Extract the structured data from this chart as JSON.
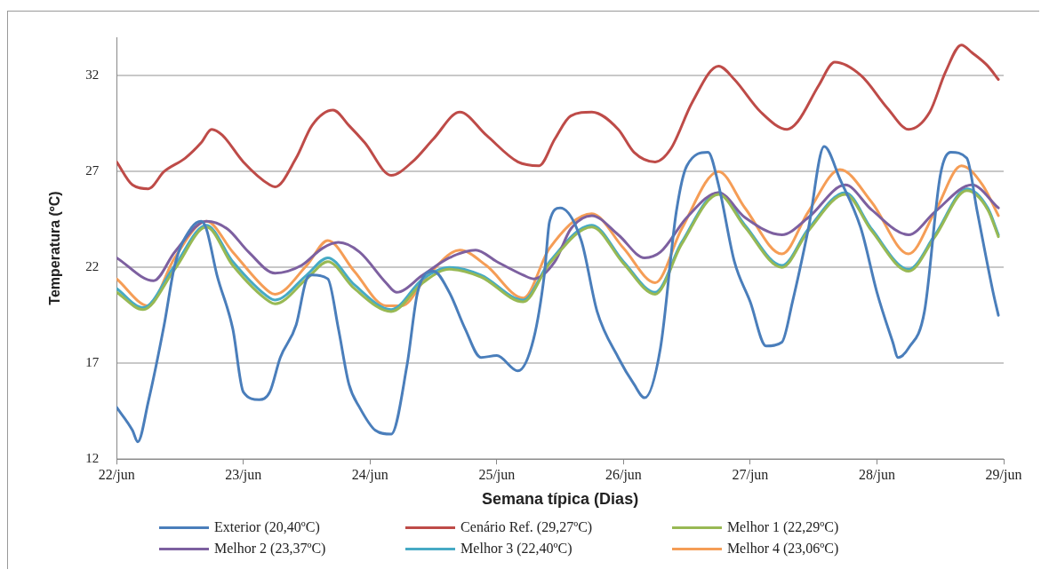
{
  "chart_data": {
    "type": "line",
    "xlabel": "Semana típica (Dias)",
    "ylabel": "Temperatura (ºC)",
    "xlim": [
      "--06-22",
      "--06-29"
    ],
    "xticks": [
      {
        "value": "--06-22",
        "label": "22/jun"
      },
      {
        "value": "--06-23",
        "label": "23/jun"
      },
      {
        "value": "--06-24",
        "label": "24/jun"
      },
      {
        "value": "--06-25",
        "label": "25/jun"
      },
      {
        "value": "--06-26",
        "label": "26/jun"
      },
      {
        "value": "--06-27",
        "label": "27/jun"
      },
      {
        "value": "--06-28",
        "label": "28/jun"
      },
      {
        "value": "--06-29",
        "label": "29/jun"
      }
    ],
    "ylim": [
      12,
      34
    ],
    "yticks": [
      12,
      17,
      22,
      27,
      32
    ],
    "grid": "y",
    "legend": "bottom",
    "marker": "none",
    "line_style": "solid",
    "series": [
      {
        "name": "Exterior (20,40ºC)",
        "color": "#4a7ebb",
        "x": [
          "--06-22T00:00",
          "--06-22T03:00",
          "--06-22T04:00",
          "--06-22T06:00",
          "--06-22T09:00",
          "--06-22T11:00",
          "--06-22T14:00",
          "--06-22T16:00",
          "--06-22T17:00",
          "--06-22T19:00",
          "--06-22T22:00",
          "--06-23T00:00",
          "--06-23T03:00",
          "--06-23T05:00",
          "--06-23T07:00",
          "--06-23T10:00",
          "--06-23T12:00",
          "--06-23T13:00",
          "--06-23T16:00",
          "--06-23T18:00",
          "--06-23T20:00",
          "--06-23T22:00",
          "--06-24T01:00",
          "--06-24T04:00",
          "--06-24T07:00",
          "--06-24T09:00",
          "--06-24T12:00",
          "--06-24T15:00",
          "--06-24T18:00",
          "--06-24T21:00",
          "--06-25T00:00",
          "--06-25T04:00",
          "--06-25T07:00",
          "--06-25T09:00",
          "--06-25T10:00",
          "--06-25T12:00",
          "--06-25T16:00",
          "--06-25T19:00",
          "--06-25T23:00",
          "--06-26T02:00",
          "--06-26T04:00",
          "--06-26T07:00",
          "--06-26T10:00",
          "--06-26T12:00",
          "--06-26T16:00",
          "--06-26T18:00",
          "--06-26T21:00",
          "--06-27T00:00",
          "--06-27T03:00",
          "--06-27T06:00",
          "--06-27T08:00",
          "--06-27T11:00",
          "--06-27T14:00",
          "--06-27T17:00",
          "--06-27T21:00",
          "--06-28T00:00",
          "--06-28T03:00",
          "--06-28T04:00",
          "--06-28T06:00",
          "--06-28T09:00",
          "--06-28T12:00",
          "--06-28T14:00",
          "--06-28T17:00",
          "--06-28T19:00",
          "--06-28T22:00",
          "--06-28T23:00"
        ],
        "values": [
          14.7,
          13.5,
          12.9,
          15.0,
          19.0,
          22.1,
          24.0,
          24.4,
          24.0,
          21.6,
          18.8,
          15.5,
          15.1,
          15.5,
          17.3,
          19.0,
          21.4,
          21.6,
          21.4,
          18.8,
          15.9,
          14.7,
          13.5,
          13.3,
          16.9,
          20.7,
          21.8,
          20.7,
          18.8,
          17.3,
          17.4,
          16.6,
          18.3,
          21.6,
          24.4,
          25.1,
          23.4,
          19.7,
          17.3,
          15.9,
          15.2,
          17.8,
          24.9,
          27.3,
          28.0,
          26.3,
          22.3,
          20.2,
          17.9,
          18.1,
          20.2,
          24.0,
          28.3,
          26.6,
          24.0,
          20.7,
          18.1,
          17.3,
          17.8,
          19.7,
          26.8,
          28.0,
          27.7,
          24.9,
          20.7,
          19.5
        ]
      },
      {
        "name": "Cenário Ref. (29,27ºC)",
        "color": "#be4b48",
        "x": [
          "--06-22T00:00",
          "--06-22T03:00",
          "--06-22T06:00",
          "--06-22T09:00",
          "--06-22T13:00",
          "--06-22T16:00",
          "--06-22T18:00",
          "--06-22T20:00",
          "--06-23T00:00",
          "--06-23T05:00",
          "--06-23T06:00",
          "--06-23T10:00",
          "--06-23T13:00",
          "--06-23T17:00",
          "--06-23T20:00",
          "--06-23T23:00",
          "--06-24T04:00",
          "--06-24T08:00",
          "--06-24T12:00",
          "--06-24T17:00",
          "--06-24T22:00",
          "--06-25T04:00",
          "--06-25T08:00",
          "--06-25T11:00",
          "--06-25T14:00",
          "--06-25T18:00",
          "--06-25T23:00",
          "--06-26T02:00",
          "--06-26T06:00",
          "--06-26T09:00",
          "--06-26T13:00",
          "--06-26T18:00",
          "--06-26T21:00",
          "--06-27T02:00",
          "--06-27T07:00",
          "--06-27T09:00",
          "--06-27T13:00",
          "--06-27T16:00",
          "--06-27T21:00",
          "--06-28T02:00",
          "--06-28T06:00",
          "--06-28T10:00",
          "--06-28T13:00",
          "--06-28T16:00",
          "--06-28T18:00",
          "--06-28T21:00",
          "--06-28T23:00"
        ],
        "values": [
          27.5,
          26.3,
          26.1,
          27.0,
          27.7,
          28.5,
          29.2,
          28.9,
          27.5,
          26.3,
          26.2,
          27.7,
          29.4,
          30.2,
          29.4,
          28.5,
          26.8,
          27.5,
          28.7,
          30.1,
          28.9,
          27.5,
          27.3,
          28.7,
          29.9,
          30.1,
          29.2,
          28.0,
          27.5,
          28.2,
          30.6,
          32.5,
          31.8,
          30.1,
          29.2,
          29.6,
          31.5,
          32.7,
          32.0,
          30.3,
          29.2,
          30.1,
          32.2,
          33.6,
          33.2,
          32.5,
          31.8
        ]
      },
      {
        "name": "Melhor 1 (22,29ºC)",
        "color": "#98b954",
        "x": [
          "--06-22T00:00",
          "--06-22T05:00",
          "--06-22T11:00",
          "--06-22T17:00",
          "--06-22T22:00",
          "--06-23T05:00",
          "--06-23T06:00",
          "--06-23T12:00",
          "--06-23T16:00",
          "--06-23T21:00",
          "--06-24T04:00",
          "--06-24T10:00",
          "--06-24T15:00",
          "--06-24T21:00",
          "--06-25T05:00",
          "--06-25T10:00",
          "--06-25T18:00",
          "--06-26T00:00",
          "--06-26T06:00",
          "--06-26T11:00",
          "--06-26T18:00",
          "--06-26T23:00",
          "--06-27T06:00",
          "--06-27T11:00",
          "--06-27T18:00",
          "--06-27T23:00",
          "--06-28T06:00",
          "--06-28T11:00",
          "--06-28T17:00",
          "--06-28T21:00",
          "--06-28T23:00"
        ],
        "values": [
          20.7,
          19.8,
          21.9,
          24.1,
          22.1,
          20.2,
          20.1,
          21.4,
          22.3,
          20.9,
          19.7,
          21.2,
          21.9,
          21.5,
          20.2,
          22.2,
          24.1,
          22.2,
          20.6,
          23.2,
          25.8,
          24.1,
          22.0,
          23.9,
          25.8,
          23.9,
          21.8,
          23.6,
          26.0,
          25.0,
          23.6
        ]
      },
      {
        "name": "Melhor 2 (23,37ºC)",
        "color": "#7d60a0",
        "x": [
          "--06-22T00:00",
          "--06-22T07:00",
          "--06-22T11:00",
          "--06-22T17:00",
          "--06-22T21:00",
          "--06-23T01:00",
          "--06-23T06:00",
          "--06-23T11:00",
          "--06-23T15:00",
          "--06-23T18:00",
          "--06-23T22:00",
          "--06-24T03:00",
          "--06-24T05:00",
          "--06-24T10:00",
          "--06-24T15:00",
          "--06-24T20:00",
          "--06-25T00:00",
          "--06-25T05:00",
          "--06-25T07:00",
          "--06-25T11:00",
          "--06-25T14:00",
          "--06-25T18:00",
          "--06-25T23:00",
          "--06-26T04:00",
          "--06-26T07:00",
          "--06-26T12:00",
          "--06-26T18:00",
          "--06-26T23:00",
          "--06-27T06:00",
          "--06-27T11:00",
          "--06-27T18:00",
          "--06-27T23:00",
          "--06-28T06:00",
          "--06-28T11:00",
          "--06-28T18:00",
          "--06-28T23:00"
        ],
        "values": [
          22.5,
          21.3,
          22.8,
          24.4,
          24.0,
          22.8,
          21.7,
          22.1,
          23.0,
          23.3,
          22.8,
          21.2,
          20.7,
          21.6,
          22.5,
          22.9,
          22.3,
          21.6,
          21.4,
          22.3,
          24.0,
          24.7,
          23.7,
          22.5,
          22.8,
          24.6,
          25.9,
          24.6,
          23.7,
          24.6,
          26.3,
          25.0,
          23.7,
          24.9,
          26.3,
          25.1
        ]
      },
      {
        "name": "Melhor 3 (22,40ºC)",
        "color": "#46aac5",
        "x": [
          "--06-22T00:00",
          "--06-22T05:00",
          "--06-22T11:00",
          "--06-22T17:00",
          "--06-22T22:00",
          "--06-23T05:00",
          "--06-23T06:00",
          "--06-23T12:00",
          "--06-23T16:00",
          "--06-23T21:00",
          "--06-24T04:00",
          "--06-24T10:00",
          "--06-24T15:00",
          "--06-24T21:00",
          "--06-25T05:00",
          "--06-25T10:00",
          "--06-25T18:00",
          "--06-26T00:00",
          "--06-26T06:00",
          "--06-26T11:00",
          "--06-26T18:00",
          "--06-26T23:00",
          "--06-27T06:00",
          "--06-27T11:00",
          "--06-27T18:00",
          "--06-27T23:00",
          "--06-28T06:00",
          "--06-28T11:00",
          "--06-28T17:00",
          "--06-28T21:00",
          "--06-28T23:00"
        ],
        "values": [
          20.9,
          19.9,
          22.1,
          24.2,
          22.3,
          20.4,
          20.3,
          21.6,
          22.5,
          21.1,
          19.8,
          21.4,
          22.0,
          21.6,
          20.3,
          22.3,
          24.2,
          22.3,
          20.7,
          23.3,
          25.9,
          24.2,
          22.1,
          24.0,
          25.9,
          24.0,
          21.9,
          23.7,
          26.1,
          25.1,
          23.7
        ]
      },
      {
        "name": "Melhor 4 (23,06ºC)",
        "color": "#f59d56",
        "x": [
          "--06-22T00:00",
          "--06-22T06:00",
          "--06-22T11:00",
          "--06-22T17:00",
          "--06-22T22:00",
          "--06-23T05:00",
          "--06-23T06:00",
          "--06-23T12:00",
          "--06-23T16:00",
          "--06-23T21:00",
          "--06-24T03:00",
          "--06-24T06:00",
          "--06-24T11:00",
          "--06-24T17:00",
          "--06-24T22:00",
          "--06-25T05:00",
          "--06-25T10:00",
          "--06-25T18:00",
          "--06-26T00:00",
          "--06-26T06:00",
          "--06-26T11:00",
          "--06-26T18:00",
          "--06-26T23:00",
          "--06-27T06:00",
          "--06-27T11:00",
          "--06-27T17:00",
          "--06-27T23:00",
          "--06-28T06:00",
          "--06-28T11:00",
          "--06-28T16:00",
          "--06-28T20:00",
          "--06-28T23:00"
        ],
        "values": [
          21.4,
          20.0,
          22.5,
          24.4,
          22.8,
          20.7,
          20.6,
          22.1,
          23.4,
          21.8,
          20.0,
          20.0,
          21.6,
          22.9,
          22.1,
          20.4,
          23.0,
          24.8,
          23.0,
          21.2,
          24.0,
          27.0,
          25.1,
          22.7,
          24.9,
          27.1,
          25.4,
          22.7,
          24.9,
          27.3,
          26.3,
          24.7
        ]
      }
    ]
  }
}
